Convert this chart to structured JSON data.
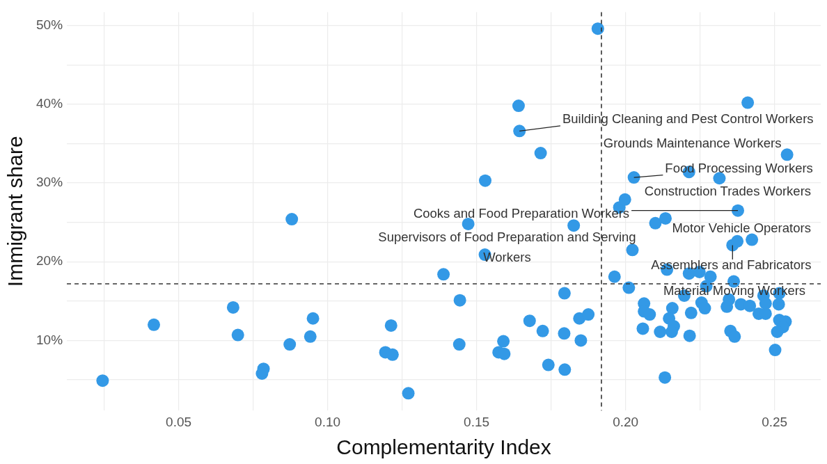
{
  "chart_data": {
    "type": "scatter",
    "xlabel": "Complementarity Index",
    "ylabel": "Immigrant share",
    "xlim": [
      0.0125,
      0.2655
    ],
    "ylim": [
      1.1,
      51.7
    ],
    "xticks": [
      {
        "value": 0.025,
        "label": null
      },
      {
        "value": 0.05,
        "label": "0.05"
      },
      {
        "value": 0.075,
        "label": null
      },
      {
        "value": 0.1,
        "label": "0.10"
      },
      {
        "value": 0.125,
        "label": null
      },
      {
        "value": 0.15,
        "label": "0.15"
      },
      {
        "value": 0.175,
        "label": null
      },
      {
        "value": 0.2,
        "label": "0.20"
      },
      {
        "value": 0.225,
        "label": null
      },
      {
        "value": 0.25,
        "label": "0.25"
      }
    ],
    "yticks": [
      {
        "value": 5,
        "label": null
      },
      {
        "value": 10,
        "label": "10%"
      },
      {
        "value": 15,
        "label": null
      },
      {
        "value": 20,
        "label": "20%"
      },
      {
        "value": 25,
        "label": null
      },
      {
        "value": 30,
        "label": "30%"
      },
      {
        "value": 35,
        "label": null
      },
      {
        "value": 40,
        "label": "40%"
      },
      {
        "value": 45,
        "label": null
      },
      {
        "value": 50,
        "label": "50%"
      }
    ],
    "grid": true,
    "legend": false,
    "marker": "circle",
    "series": [
      {
        "color": "#3399e6",
        "x": [
          0.0245,
          0.0417,
          0.0683,
          0.0699,
          0.0785,
          0.078,
          0.0873,
          0.088,
          0.0942,
          0.0951,
          0.1194,
          0.1218,
          0.1213,
          0.1271,
          0.1389,
          0.1444,
          0.1442,
          0.1472,
          0.1529,
          0.1528,
          0.1641,
          0.1644,
          0.1715,
          0.1826,
          0.1907,
          0.1678,
          0.1722,
          0.159,
          0.1574,
          0.1593,
          0.1741,
          0.1796,
          0.1794,
          0.1795,
          0.1845,
          0.1875,
          0.185,
          0.1963,
          0.2011,
          0.2023,
          0.1979,
          0.1998,
          0.2028,
          0.241,
          0.2542,
          0.2213,
          0.2315,
          0.2377,
          0.21,
          0.2134,
          0.2359,
          0.2375,
          0.2424,
          0.2139,
          0.2213,
          0.2248,
          0.2285,
          0.2363,
          0.2197,
          0.2271,
          0.2062,
          0.2062,
          0.2081,
          0.2157,
          0.2146,
          0.2162,
          0.2155,
          0.2116,
          0.2058,
          0.222,
          0.2215,
          0.2255,
          0.2266,
          0.234,
          0.2347,
          0.2387,
          0.2417,
          0.2352,
          0.2366,
          0.2447,
          0.247,
          0.2463,
          0.247,
          0.2516,
          0.2514,
          0.2516,
          0.2537,
          0.2528,
          0.2509,
          0.2502,
          0.2132
        ],
        "values": [
          4.9,
          12.0,
          14.2,
          10.7,
          6.4,
          5.8,
          9.5,
          25.4,
          10.5,
          12.8,
          8.5,
          8.2,
          11.9,
          3.3,
          18.4,
          15.1,
          9.5,
          24.8,
          30.3,
          20.9,
          39.8,
          36.6,
          33.8,
          24.6,
          49.6,
          12.5,
          11.2,
          9.9,
          8.5,
          8.3,
          6.9,
          6.3,
          10.9,
          16.0,
          12.8,
          13.3,
          10.0,
          18.1,
          16.7,
          21.5,
          26.9,
          27.9,
          30.7,
          40.2,
          33.6,
          31.4,
          30.6,
          26.5,
          24.9,
          25.5,
          22.1,
          22.6,
          22.8,
          19.0,
          18.5,
          18.7,
          18.1,
          17.5,
          15.7,
          16.9,
          14.7,
          13.7,
          13.3,
          14.1,
          12.8,
          11.8,
          11.1,
          11.1,
          11.5,
          13.5,
          10.6,
          14.8,
          14.1,
          14.3,
          15.2,
          14.6,
          14.4,
          11.2,
          10.5,
          13.4,
          13.4,
          15.7,
          14.7,
          16.0,
          14.6,
          12.6,
          12.4,
          11.7,
          11.1,
          8.8,
          5.3
        ]
      }
    ],
    "ref_lines": [
      {
        "axis": "x",
        "value": 0.1919,
        "color": "#333333",
        "line_style": "dashed"
      },
      {
        "axis": "y",
        "value": 17.2,
        "color": "#333333",
        "line_style": "dashed"
      }
    ],
    "annotations": [
      {
        "text": "Building Cleaning and Pest Control Workers",
        "x": 0.1644,
        "y": 36.6
      },
      {
        "text": "Grounds Maintenance Workers",
        "x": 0.2542,
        "y": 33.6
      },
      {
        "text": "Food Processing Workers",
        "x": 0.2028,
        "y": 30.7
      },
      {
        "text": "Construction Trades Workers",
        "x": 0.2315,
        "y": 30.6
      },
      {
        "text": "Cooks and Food Preparation Workers",
        "x": 0.2377,
        "y": 26.5
      },
      {
        "text": "Supervisors of Food Preparation and Serving Workers",
        "x": 0.2023,
        "y": 21.5
      },
      {
        "text": "Motor Vehicle Operators",
        "x": 0.2375,
        "y": 22.6
      },
      {
        "text": "Assemblers and Fabricators",
        "x": 0.2359,
        "y": 22.1
      },
      {
        "text": "Material Moving Workers",
        "x": 0.2363,
        "y": 17.5
      }
    ]
  }
}
